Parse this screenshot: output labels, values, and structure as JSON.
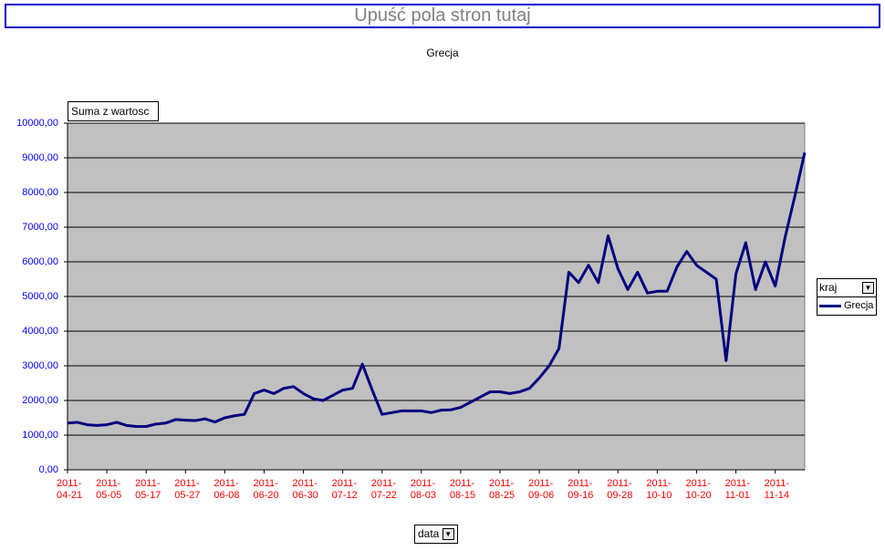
{
  "ui": {
    "page_field_drop": "Upuść pola stron tutaj",
    "data_field_button": "Suma z wartosc",
    "legend_field_button": "kraj",
    "category_field_button": "data"
  },
  "chart_data": {
    "type": "line",
    "title": "Grecja",
    "categories": [
      "2011-04-21",
      null,
      null,
      null,
      "2011-05-05",
      null,
      null,
      null,
      "2011-05-17",
      null,
      null,
      null,
      "2011-05-27",
      null,
      null,
      null,
      "2011-06-08",
      null,
      null,
      null,
      "2011-06-20",
      null,
      null,
      null,
      "2011-06-30",
      null,
      null,
      null,
      "2011-07-12",
      null,
      null,
      null,
      "2011-07-22",
      null,
      null,
      null,
      "2011-08-03",
      null,
      null,
      null,
      "2011-08-15",
      null,
      null,
      null,
      "2011-08-25",
      null,
      null,
      null,
      "2011-09-06",
      null,
      null,
      null,
      "2011-09-16",
      null,
      null,
      null,
      "2011-09-28",
      null,
      null,
      null,
      "2011-10-10",
      null,
      null,
      null,
      "2011-10-20",
      null,
      null,
      null,
      "2011-11-01",
      null,
      null,
      null,
      "2011-11-14",
      null,
      null,
      null
    ],
    "series": [
      {
        "name": "Grecja",
        "color": "#000080",
        "values": [
          1350,
          1370,
          1300,
          1280,
          1300,
          1370,
          1280,
          1250,
          1250,
          1320,
          1350,
          1450,
          1430,
          1420,
          1470,
          1380,
          1500,
          1560,
          1600,
          2200,
          2300,
          2200,
          2350,
          2400,
          2200,
          2050,
          2000,
          2150,
          2300,
          2350,
          3050,
          2300,
          1600,
          1650,
          1700,
          1700,
          1700,
          1650,
          1720,
          1730,
          1800,
          1950,
          2100,
          2250,
          2250,
          2200,
          2250,
          2350,
          2650,
          3000,
          3500,
          5700,
          5400,
          5900,
          5400,
          6750,
          5800,
          5200,
          5700,
          5100,
          5150,
          5150,
          5850,
          6300,
          5900,
          5700,
          5500,
          3150,
          5650,
          6550,
          5200,
          6000,
          5300,
          6700,
          7900,
          9150
        ]
      }
    ],
    "ylim": [
      0,
      10000
    ],
    "yticks": [
      {
        "value": 0,
        "label": "0,00"
      },
      {
        "value": 1000,
        "label": "1000,00"
      },
      {
        "value": 2000,
        "label": "2000,00"
      },
      {
        "value": 3000,
        "label": "3000,00"
      },
      {
        "value": 4000,
        "label": "4000,00"
      },
      {
        "value": 5000,
        "label": "5000,00"
      },
      {
        "value": 6000,
        "label": "6000,00"
      },
      {
        "value": 7000,
        "label": "7000,00"
      },
      {
        "value": 8000,
        "label": "8000,00"
      },
      {
        "value": 9000,
        "label": "9000,00"
      },
      {
        "value": 10000,
        "label": "10000,00"
      }
    ],
    "grid": true,
    "plot_background": "#c0c0c0",
    "legend_position": "right"
  }
}
